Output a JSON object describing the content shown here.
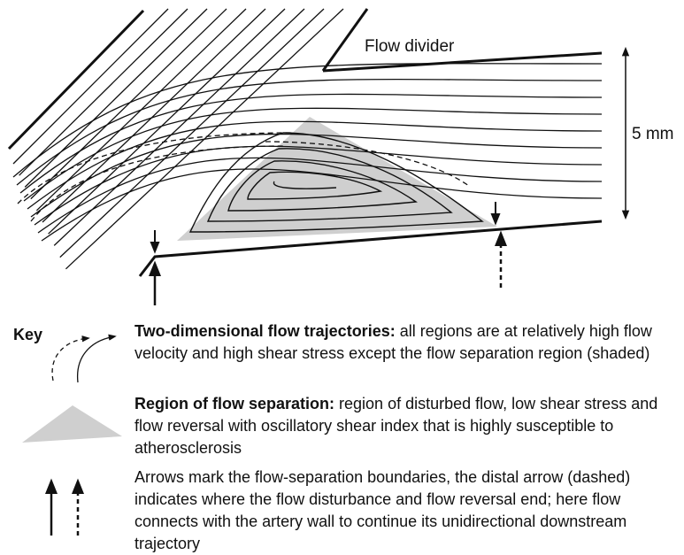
{
  "diagram": {
    "labels": {
      "flow_divider": "Flow divider",
      "scale": "5 mm"
    }
  },
  "key": {
    "title": "Key",
    "items": [
      {
        "term": "Two-dimensional flow trajectories:",
        "text": "all regions are at relatively high flow velocity and high shear stress except the flow separation region (shaded)"
      },
      {
        "term": "Region of flow separation:",
        "text": "region of disturbed flow, low shear stress and flow reversal with oscillatory shear index that is highly susceptible to atherosclerosis"
      },
      {
        "text": "Arrows mark the flow-separation boundaries, the distal arrow (dashed) indicates where the flow disturbance and flow reversal end; here flow connects with the artery wall to continue its unidirectional downstream trajectory"
      }
    ]
  }
}
